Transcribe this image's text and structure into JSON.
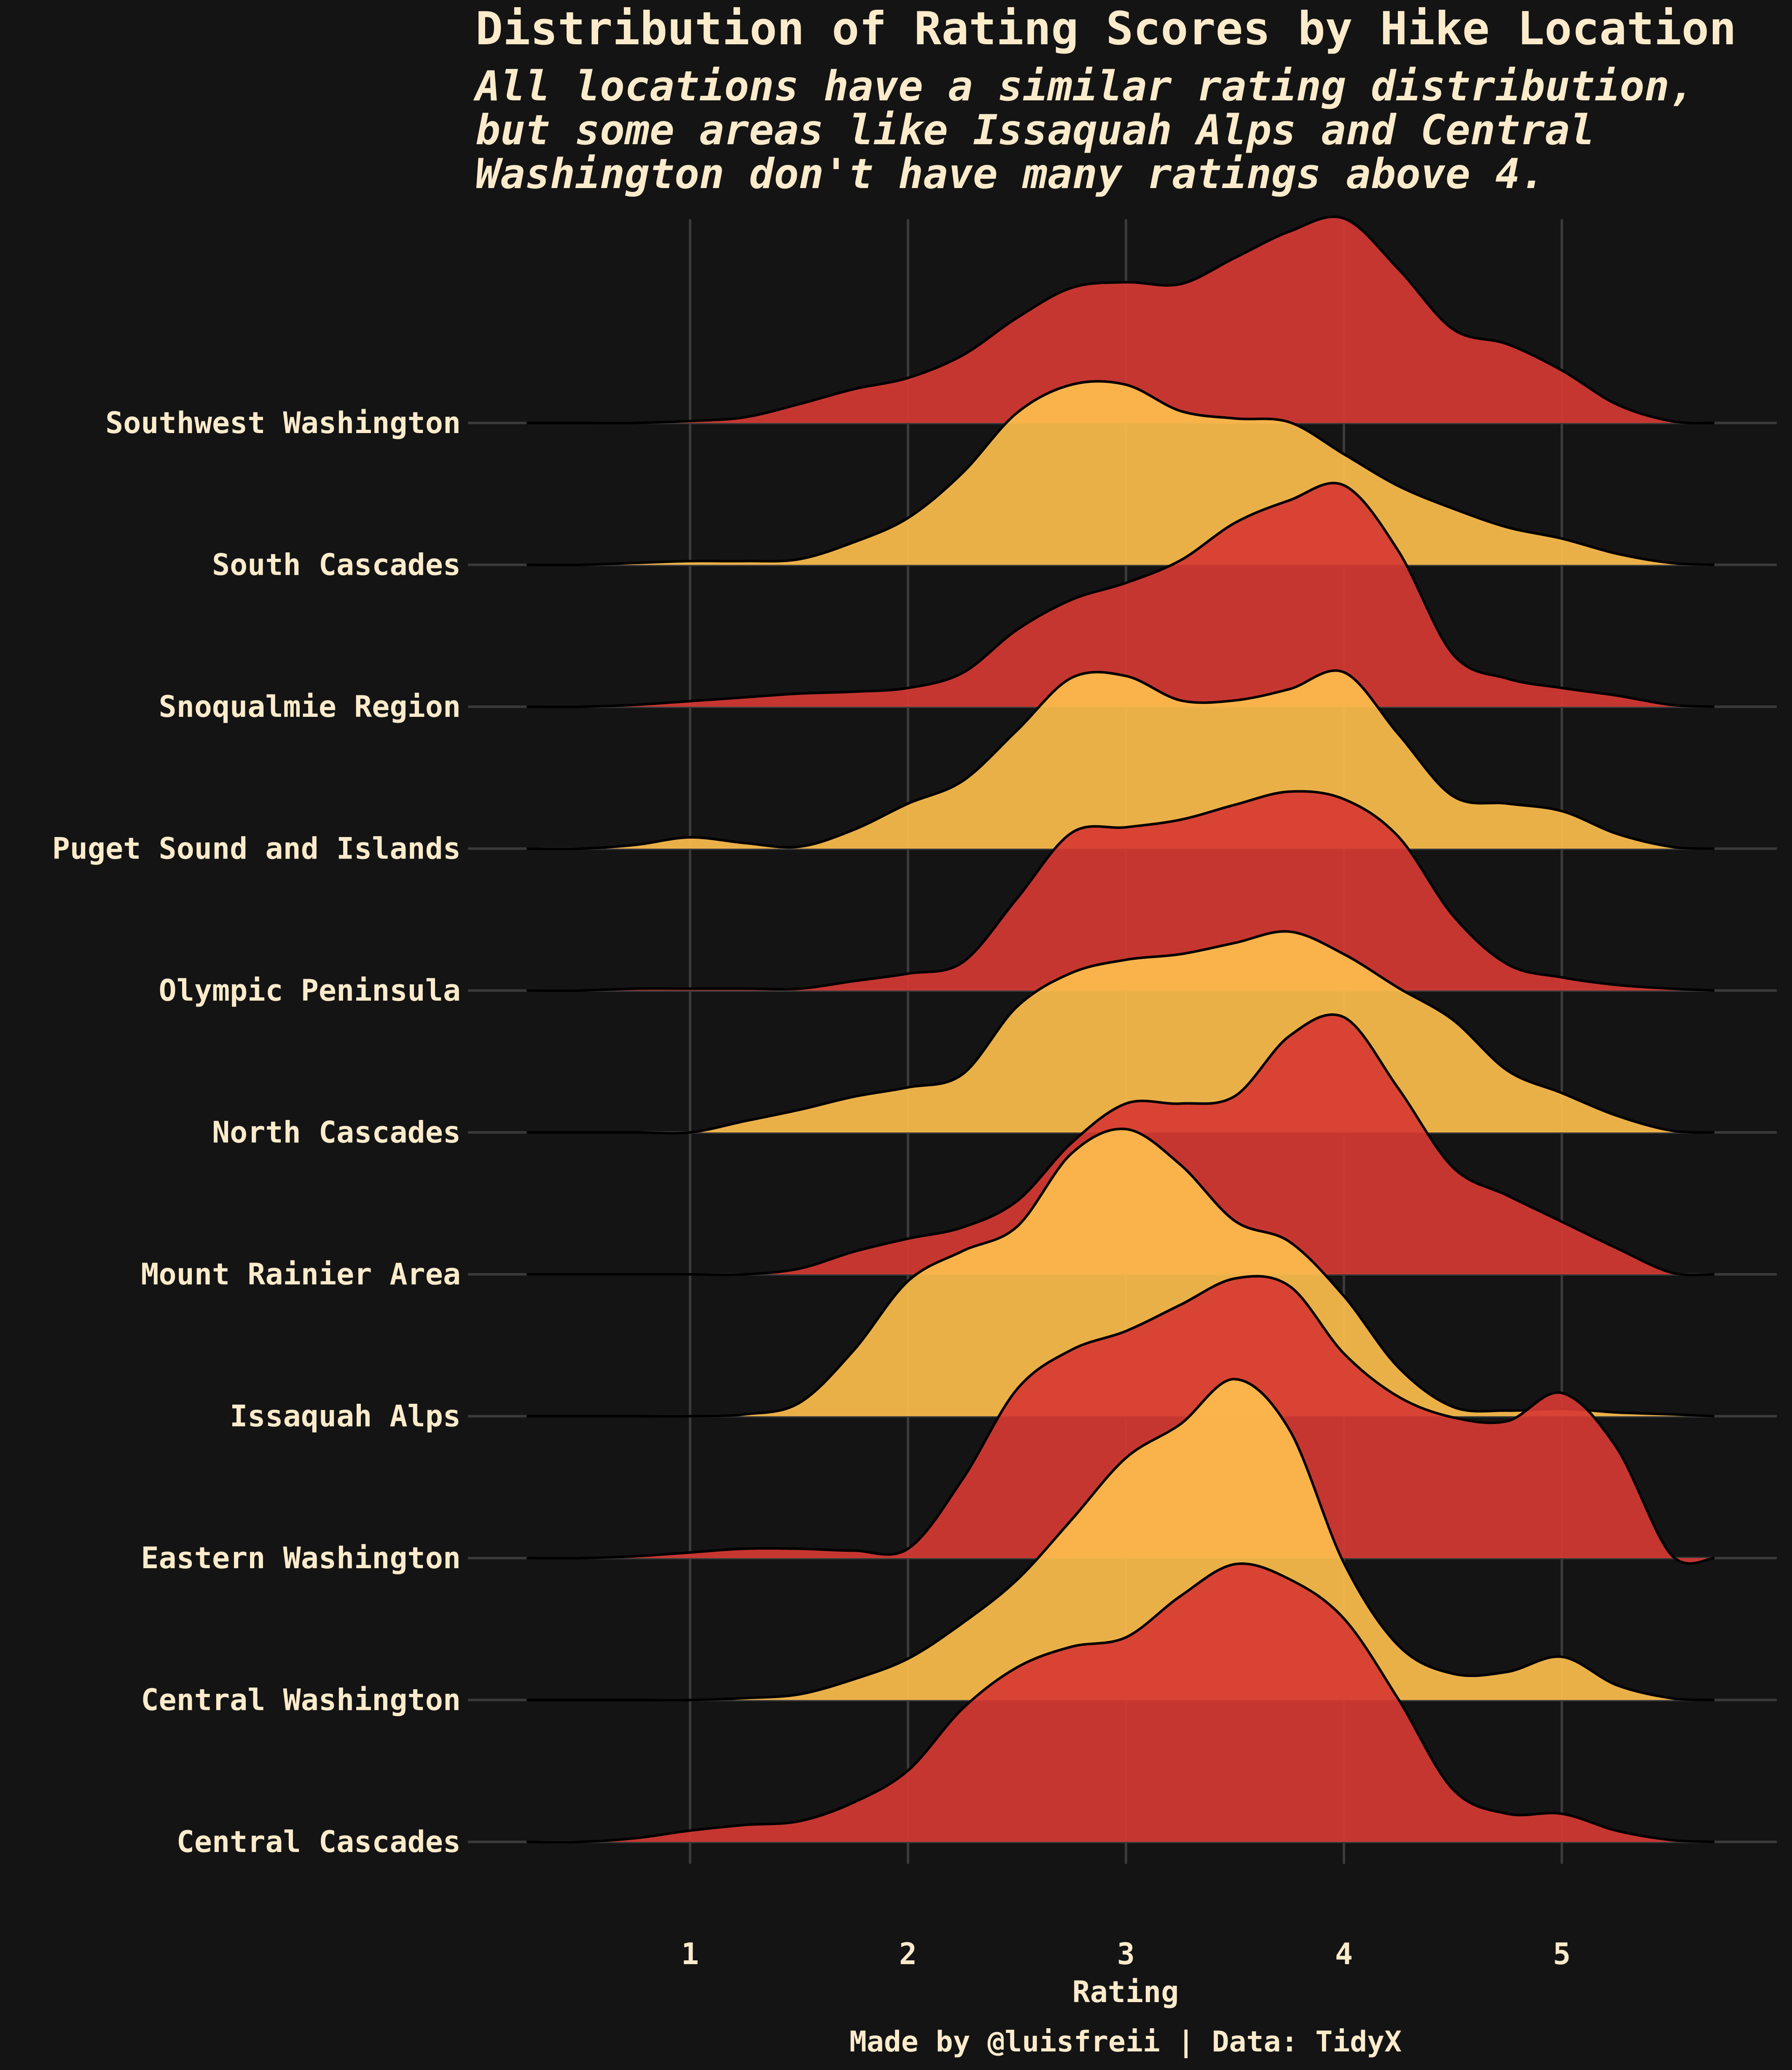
{
  "chart_data": {
    "type": "ridgeline",
    "title": "Distribution of Rating Scores by Hike Location",
    "subtitle_lines": [
      "All locations have a similar rating distribution,",
      "but some areas like Issaquah Alps and Central",
      "Washington don't have many ratings above 4."
    ],
    "xlabel": "Rating",
    "caption": "Made by @luisfreii | Data: TidyX",
    "xlim": [
      -0.1,
      5.7
    ],
    "x_ticks": [
      1,
      2,
      3,
      4,
      5
    ],
    "x_tick_labels": [
      "1",
      "2",
      "3",
      "4",
      "5"
    ],
    "grid": "vertical-and-baseline",
    "colors": {
      "background": "#141414",
      "red": "#D63A33",
      "yellow": "#FDBE4D",
      "text": "#FCEBCB",
      "grid": "#3A3A3A",
      "outline": "#000000"
    },
    "x_grid": [
      0.25,
      0.5,
      0.75,
      1,
      1.25,
      1.5,
      1.75,
      2,
      2.25,
      2.5,
      2.75,
      3,
      3.25,
      3.5,
      3.75,
      4,
      4.25,
      4.5,
      4.75,
      5,
      5.25,
      5.5,
      5.7
    ],
    "series": [
      {
        "name": "Southwest Washington",
        "color": "red",
        "density": [
          0,
          0,
          0,
          0.01,
          0.03,
          0.1,
          0.18,
          0.24,
          0.36,
          0.56,
          0.72,
          0.75,
          0.74,
          0.88,
          1.02,
          1.09,
          0.82,
          0.5,
          0.42,
          0.28,
          0.1,
          0.01,
          0
        ]
      },
      {
        "name": "South Cascades",
        "color": "yellow",
        "density": [
          0,
          0,
          0.01,
          0.02,
          0.02,
          0.03,
          0.12,
          0.25,
          0.49,
          0.81,
          0.96,
          0.96,
          0.82,
          0.78,
          0.76,
          0.59,
          0.42,
          0.3,
          0.2,
          0.14,
          0.06,
          0.01,
          0
        ]
      },
      {
        "name": "Snoqualmie Region",
        "color": "red",
        "density": [
          0,
          0,
          0.01,
          0.03,
          0.05,
          0.07,
          0.08,
          0.1,
          0.18,
          0.41,
          0.57,
          0.66,
          0.78,
          0.98,
          1.1,
          1.18,
          0.83,
          0.28,
          0.15,
          0.1,
          0.06,
          0.01,
          0
        ]
      },
      {
        "name": "Puget Sound and Islands",
        "color": "yellow",
        "density": [
          0,
          0,
          0.02,
          0.06,
          0.03,
          0.01,
          0.1,
          0.24,
          0.36,
          0.63,
          0.91,
          0.92,
          0.79,
          0.79,
          0.85,
          0.94,
          0.61,
          0.28,
          0.24,
          0.2,
          0.08,
          0.01,
          0
        ]
      },
      {
        "name": "Olympic Peninsula",
        "color": "red",
        "density": [
          0,
          0,
          0.01,
          0.01,
          0.01,
          0.01,
          0.05,
          0.09,
          0.15,
          0.49,
          0.84,
          0.87,
          0.91,
          0.99,
          1.06,
          1.02,
          0.82,
          0.4,
          0.14,
          0.07,
          0.03,
          0.01,
          0
        ]
      },
      {
        "name": "North Cascades",
        "color": "yellow",
        "density": [
          0,
          0,
          0,
          0,
          0.06,
          0.12,
          0.19,
          0.24,
          0.31,
          0.67,
          0.85,
          0.92,
          0.95,
          1.01,
          1.07,
          0.95,
          0.77,
          0.6,
          0.33,
          0.21,
          0.09,
          0.01,
          0
        ]
      },
      {
        "name": "Mount Rainier Area",
        "color": "red",
        "density": [
          0,
          0,
          0,
          0,
          0,
          0.03,
          0.12,
          0.19,
          0.25,
          0.39,
          0.7,
          0.91,
          0.91,
          0.95,
          1.27,
          1.37,
          0.99,
          0.57,
          0.42,
          0.28,
          0.14,
          0.01,
          0
        ]
      },
      {
        "name": "Issaquah Alps",
        "color": "yellow",
        "density": [
          0,
          0,
          0,
          0,
          0.01,
          0.07,
          0.35,
          0.72,
          0.88,
          1.01,
          1.4,
          1.53,
          1.34,
          1.04,
          0.93,
          0.64,
          0.26,
          0.05,
          0.03,
          0.04,
          0.02,
          0.01,
          0
        ]
      },
      {
        "name": "Eastern Washington",
        "color": "red",
        "density": [
          0,
          0,
          0.01,
          0.03,
          0.05,
          0.05,
          0.04,
          0.05,
          0.42,
          0.9,
          1.11,
          1.21,
          1.35,
          1.49,
          1.45,
          1.09,
          0.86,
          0.75,
          0.73,
          0.88,
          0.59,
          0.02,
          0
        ]
      },
      {
        "name": "Central Washington",
        "color": "yellow",
        "density": [
          0,
          0,
          0,
          0,
          0.01,
          0.03,
          0.11,
          0.22,
          0.41,
          0.64,
          0.96,
          1.29,
          1.47,
          1.71,
          1.44,
          0.73,
          0.29,
          0.14,
          0.15,
          0.23,
          0.08,
          0.01,
          0
        ]
      },
      {
        "name": "Central Cascades",
        "color": "red",
        "density": [
          0,
          0,
          0.02,
          0.06,
          0.09,
          0.11,
          0.21,
          0.38,
          0.71,
          0.93,
          1.04,
          1.09,
          1.31,
          1.48,
          1.4,
          1.19,
          0.76,
          0.28,
          0.15,
          0.15,
          0.06,
          0.01,
          0
        ]
      }
    ]
  }
}
